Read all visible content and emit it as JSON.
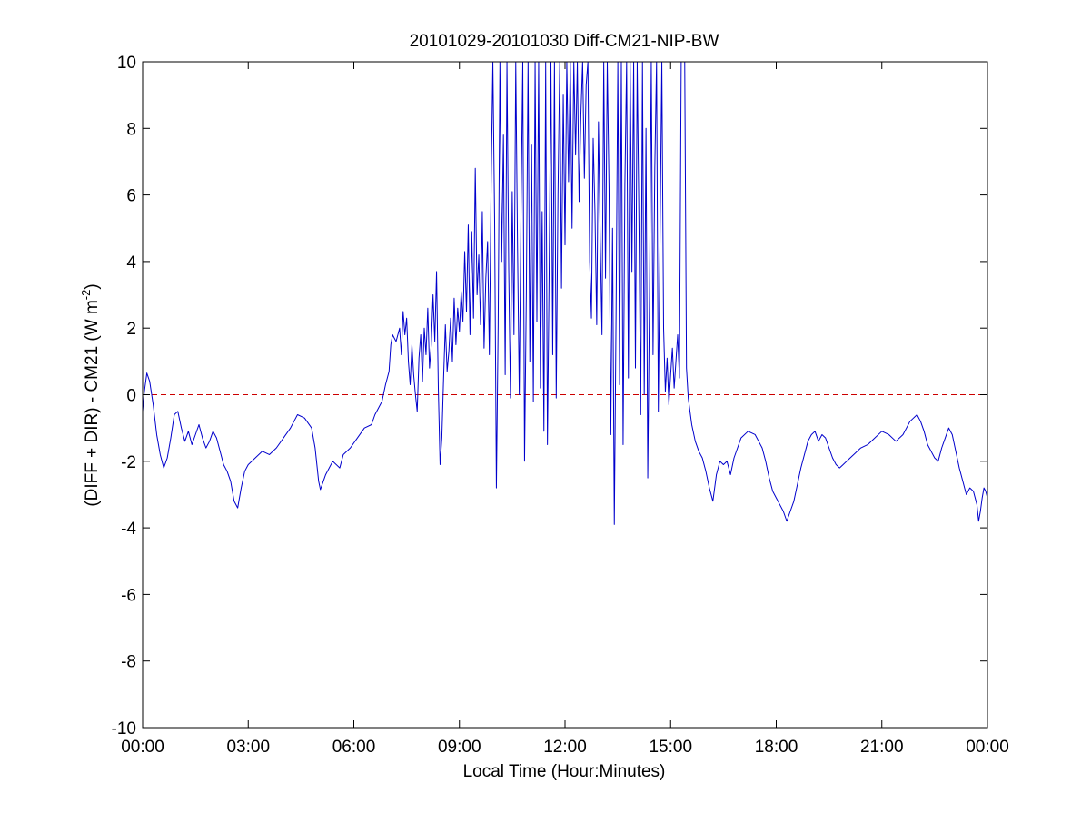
{
  "chart_data": {
    "type": "line",
    "title": "20101029-20101030 Diff-CM21-NIP-BW",
    "xlabel": "Local Time (Hour:Minutes)",
    "ylabel": {
      "main": "(DIFF + DIR) - CM21 (W m",
      "sup": "-2",
      "close": ")"
    },
    "x_unit": "hours",
    "xlim": [
      0,
      24
    ],
    "ylim": [
      -10,
      10
    ],
    "xticks": [
      {
        "value": 0,
        "label": "00:00"
      },
      {
        "value": 3,
        "label": "03:00"
      },
      {
        "value": 6,
        "label": "06:00"
      },
      {
        "value": 9,
        "label": "09:00"
      },
      {
        "value": 12,
        "label": "12:00"
      },
      {
        "value": 15,
        "label": "15:00"
      },
      {
        "value": 18,
        "label": "18:00"
      },
      {
        "value": 21,
        "label": "21:00"
      },
      {
        "value": 24,
        "label": "00:00"
      }
    ],
    "yticks": [
      {
        "value": 10,
        "label": "10"
      },
      {
        "value": 8,
        "label": "8"
      },
      {
        "value": 6,
        "label": "6"
      },
      {
        "value": 4,
        "label": "4"
      },
      {
        "value": 2,
        "label": "2"
      },
      {
        "value": 0,
        "label": "0"
      },
      {
        "value": -2,
        "label": "-2"
      },
      {
        "value": -4,
        "label": "-4"
      },
      {
        "value": -6,
        "label": "-6"
      },
      {
        "value": -8,
        "label": "-8"
      },
      {
        "value": -10,
        "label": "-10"
      }
    ],
    "grid": false,
    "reference_line": {
      "y": 0,
      "style": "dashed",
      "color": "#cc0000"
    },
    "series_color": "#0000cc",
    "series": [
      {
        "points": [
          [
            0.0,
            -0.5
          ],
          [
            0.05,
            0.1
          ],
          [
            0.12,
            0.65
          ],
          [
            0.2,
            0.4
          ],
          [
            0.3,
            -0.3
          ],
          [
            0.4,
            -1.2
          ],
          [
            0.5,
            -1.8
          ],
          [
            0.6,
            -2.2
          ],
          [
            0.7,
            -1.9
          ],
          [
            0.8,
            -1.3
          ],
          [
            0.9,
            -0.6
          ],
          [
            1.0,
            -0.5
          ],
          [
            1.1,
            -1.0
          ],
          [
            1.2,
            -1.4
          ],
          [
            1.3,
            -1.1
          ],
          [
            1.4,
            -1.5
          ],
          [
            1.5,
            -1.2
          ],
          [
            1.6,
            -0.9
          ],
          [
            1.7,
            -1.3
          ],
          [
            1.8,
            -1.6
          ],
          [
            1.9,
            -1.4
          ],
          [
            2.0,
            -1.1
          ],
          [
            2.1,
            -1.3
          ],
          [
            2.2,
            -1.7
          ],
          [
            2.3,
            -2.1
          ],
          [
            2.4,
            -2.3
          ],
          [
            2.5,
            -2.6
          ],
          [
            2.6,
            -3.2
          ],
          [
            2.7,
            -3.4
          ],
          [
            2.8,
            -2.8
          ],
          [
            2.9,
            -2.3
          ],
          [
            3.0,
            -2.1
          ],
          [
            3.2,
            -1.9
          ],
          [
            3.4,
            -1.7
          ],
          [
            3.6,
            -1.8
          ],
          [
            3.8,
            -1.6
          ],
          [
            4.0,
            -1.3
          ],
          [
            4.2,
            -1.0
          ],
          [
            4.3,
            -0.8
          ],
          [
            4.4,
            -0.6
          ],
          [
            4.6,
            -0.7
          ],
          [
            4.8,
            -1.0
          ],
          [
            4.9,
            -1.6
          ],
          [
            5.0,
            -2.6
          ],
          [
            5.05,
            -2.85
          ],
          [
            5.2,
            -2.4
          ],
          [
            5.4,
            -2.0
          ],
          [
            5.6,
            -2.2
          ],
          [
            5.7,
            -1.8
          ],
          [
            5.9,
            -1.6
          ],
          [
            6.1,
            -1.3
          ],
          [
            6.3,
            -1.0
          ],
          [
            6.5,
            -0.9
          ],
          [
            6.6,
            -0.6
          ],
          [
            6.8,
            -0.2
          ],
          [
            6.9,
            0.3
          ],
          [
            7.0,
            0.7
          ],
          [
            7.05,
            1.5
          ],
          [
            7.1,
            1.8
          ],
          [
            7.2,
            1.6
          ],
          [
            7.3,
            2.0
          ],
          [
            7.35,
            1.2
          ],
          [
            7.4,
            2.5
          ],
          [
            7.45,
            1.8
          ],
          [
            7.5,
            2.3
          ],
          [
            7.55,
            1.0
          ],
          [
            7.6,
            0.3
          ],
          [
            7.65,
            1.5
          ],
          [
            7.7,
            0.6
          ],
          [
            7.75,
            0.0
          ],
          [
            7.8,
            -0.5
          ],
          [
            7.85,
            1.1
          ],
          [
            7.9,
            1.8
          ],
          [
            7.95,
            0.4
          ],
          [
            8.0,
            2.0
          ],
          [
            8.05,
            1.2
          ],
          [
            8.1,
            2.6
          ],
          [
            8.15,
            0.8
          ],
          [
            8.2,
            1.5
          ],
          [
            8.25,
            3.0
          ],
          [
            8.3,
            1.6
          ],
          [
            8.35,
            3.7
          ],
          [
            8.4,
            0.2
          ],
          [
            8.45,
            -2.1
          ],
          [
            8.5,
            -1.3
          ],
          [
            8.55,
            0.5
          ],
          [
            8.6,
            2.1
          ],
          [
            8.65,
            0.7
          ],
          [
            8.7,
            1.3
          ],
          [
            8.75,
            2.3
          ],
          [
            8.8,
            1.0
          ],
          [
            8.85,
            2.9
          ],
          [
            8.9,
            1.5
          ],
          [
            8.95,
            2.6
          ],
          [
            9.0,
            1.9
          ],
          [
            9.05,
            3.1
          ],
          [
            9.1,
            2.2
          ],
          [
            9.15,
            4.3
          ],
          [
            9.2,
            2.5
          ],
          [
            9.25,
            5.1
          ],
          [
            9.3,
            1.8
          ],
          [
            9.35,
            4.9
          ],
          [
            9.4,
            2.3
          ],
          [
            9.45,
            6.8
          ],
          [
            9.5,
            3.0
          ],
          [
            9.55,
            4.2
          ],
          [
            9.6,
            2.1
          ],
          [
            9.65,
            5.5
          ],
          [
            9.7,
            1.4
          ],
          [
            9.75,
            3.5
          ],
          [
            9.8,
            4.6
          ],
          [
            9.85,
            1.2
          ],
          [
            9.9,
            6.3
          ],
          [
            9.95,
            10.0
          ],
          [
            10.0,
            5.2
          ],
          [
            10.05,
            -2.8
          ],
          [
            10.1,
            2.1
          ],
          [
            10.15,
            10.0
          ],
          [
            10.2,
            4.0
          ],
          [
            10.25,
            7.8
          ],
          [
            10.3,
            0.6
          ],
          [
            10.35,
            10.0
          ],
          [
            10.4,
            3.8
          ],
          [
            10.45,
            -0.1
          ],
          [
            10.5,
            6.1
          ],
          [
            10.55,
            1.8
          ],
          [
            10.6,
            10.0
          ],
          [
            10.65,
            4.5
          ],
          [
            10.7,
            0.0
          ],
          [
            10.75,
            5.5
          ],
          [
            10.8,
            10.0
          ],
          [
            10.85,
            -2.0
          ],
          [
            10.9,
            3.0
          ],
          [
            10.95,
            10.0
          ],
          [
            11.0,
            1.0
          ],
          [
            11.05,
            7.5
          ],
          [
            11.1,
            -0.2
          ],
          [
            11.15,
            10.0
          ],
          [
            11.2,
            2.2
          ],
          [
            11.25,
            10.0
          ],
          [
            11.3,
            0.2
          ],
          [
            11.35,
            5.5
          ],
          [
            11.4,
            -1.1
          ],
          [
            11.45,
            10.0
          ],
          [
            11.5,
            -1.5
          ],
          [
            11.55,
            3.8
          ],
          [
            11.6,
            10.0
          ],
          [
            11.65,
            1.2
          ],
          [
            11.7,
            10.0
          ],
          [
            11.75,
            -0.1
          ],
          [
            11.8,
            6.0
          ],
          [
            11.85,
            10.0
          ],
          [
            11.9,
            3.2
          ],
          [
            11.95,
            9.0
          ],
          [
            12.0,
            4.5
          ],
          [
            12.05,
            10.0
          ],
          [
            12.1,
            6.4
          ],
          [
            12.15,
            10.0
          ],
          [
            12.2,
            5.0
          ],
          [
            12.25,
            10.0
          ],
          [
            12.3,
            7.2
          ],
          [
            12.35,
            10.0
          ],
          [
            12.4,
            5.8
          ],
          [
            12.45,
            8.4
          ],
          [
            12.5,
            10.0
          ],
          [
            12.55,
            6.5
          ],
          [
            12.6,
            9.3
          ],
          [
            12.65,
            10.0
          ],
          [
            12.7,
            4.0
          ],
          [
            12.75,
            2.3
          ],
          [
            12.8,
            7.7
          ],
          [
            12.85,
            5.5
          ],
          [
            12.9,
            2.1
          ],
          [
            12.95,
            8.2
          ],
          [
            13.0,
            4.7
          ],
          [
            13.05,
            1.8
          ],
          [
            13.1,
            10.0
          ],
          [
            13.15,
            3.5
          ],
          [
            13.2,
            10.0
          ],
          [
            13.25,
            6.2
          ],
          [
            13.3,
            -1.2
          ],
          [
            13.35,
            5.0
          ],
          [
            13.4,
            -3.9
          ],
          [
            13.45,
            2.5
          ],
          [
            13.5,
            10.0
          ],
          [
            13.55,
            0.3
          ],
          [
            13.6,
            10.0
          ],
          [
            13.65,
            -1.5
          ],
          [
            13.7,
            6.3
          ],
          [
            13.75,
            10.0
          ],
          [
            13.8,
            0.5
          ],
          [
            13.85,
            10.0
          ],
          [
            13.9,
            3.7
          ],
          [
            13.95,
            10.0
          ],
          [
            14.0,
            0.8
          ],
          [
            14.05,
            10.0
          ],
          [
            14.1,
            5.2
          ],
          [
            14.15,
            -0.6
          ],
          [
            14.2,
            10.0
          ],
          [
            14.25,
            0.0
          ],
          [
            14.3,
            8.0
          ],
          [
            14.35,
            -2.5
          ],
          [
            14.4,
            3.0
          ],
          [
            14.45,
            10.0
          ],
          [
            14.5,
            1.2
          ],
          [
            14.55,
            6.8
          ],
          [
            14.6,
            10.0
          ],
          [
            14.65,
            -0.5
          ],
          [
            14.7,
            4.8
          ],
          [
            14.75,
            10.0
          ],
          [
            14.8,
            2.0
          ],
          [
            14.85,
            0.1
          ],
          [
            14.9,
            1.1
          ],
          [
            14.95,
            -0.3
          ],
          [
            15.0,
            0.6
          ],
          [
            15.05,
            1.4
          ],
          [
            15.1,
            0.2
          ],
          [
            15.15,
            1.0
          ],
          [
            15.2,
            1.8
          ],
          [
            15.25,
            0.5
          ],
          [
            15.3,
            10.0
          ],
          [
            15.35,
            10.0
          ],
          [
            15.4,
            10.0
          ],
          [
            15.45,
            0.8
          ],
          [
            15.5,
            -0.1
          ],
          [
            15.55,
            -0.5
          ],
          [
            15.6,
            -0.9
          ],
          [
            15.7,
            -1.4
          ],
          [
            15.8,
            -1.7
          ],
          [
            15.9,
            -1.9
          ],
          [
            16.0,
            -2.3
          ],
          [
            16.1,
            -2.8
          ],
          [
            16.2,
            -3.2
          ],
          [
            16.3,
            -2.4
          ],
          [
            16.4,
            -2.0
          ],
          [
            16.5,
            -2.1
          ],
          [
            16.6,
            -2.0
          ],
          [
            16.7,
            -2.4
          ],
          [
            16.8,
            -1.9
          ],
          [
            16.9,
            -1.6
          ],
          [
            17.0,
            -1.3
          ],
          [
            17.2,
            -1.1
          ],
          [
            17.4,
            -1.2
          ],
          [
            17.5,
            -1.4
          ],
          [
            17.6,
            -1.6
          ],
          [
            17.7,
            -2.0
          ],
          [
            17.8,
            -2.5
          ],
          [
            17.9,
            -2.9
          ],
          [
            18.0,
            -3.1
          ],
          [
            18.1,
            -3.3
          ],
          [
            18.2,
            -3.5
          ],
          [
            18.3,
            -3.8
          ],
          [
            18.4,
            -3.5
          ],
          [
            18.5,
            -3.2
          ],
          [
            18.6,
            -2.7
          ],
          [
            18.7,
            -2.2
          ],
          [
            18.8,
            -1.8
          ],
          [
            18.9,
            -1.4
          ],
          [
            19.0,
            -1.2
          ],
          [
            19.1,
            -1.1
          ],
          [
            19.2,
            -1.4
          ],
          [
            19.3,
            -1.2
          ],
          [
            19.4,
            -1.3
          ],
          [
            19.5,
            -1.6
          ],
          [
            19.6,
            -1.9
          ],
          [
            19.7,
            -2.1
          ],
          [
            19.8,
            -2.2
          ],
          [
            19.9,
            -2.1
          ],
          [
            20.0,
            -2.0
          ],
          [
            20.2,
            -1.8
          ],
          [
            20.4,
            -1.6
          ],
          [
            20.6,
            -1.5
          ],
          [
            20.8,
            -1.3
          ],
          [
            21.0,
            -1.1
          ],
          [
            21.2,
            -1.2
          ],
          [
            21.4,
            -1.4
          ],
          [
            21.6,
            -1.2
          ],
          [
            21.8,
            -0.8
          ],
          [
            22.0,
            -0.6
          ],
          [
            22.1,
            -0.8
          ],
          [
            22.2,
            -1.1
          ],
          [
            22.3,
            -1.5
          ],
          [
            22.4,
            -1.7
          ],
          [
            22.5,
            -1.9
          ],
          [
            22.6,
            -2.0
          ],
          [
            22.7,
            -1.6
          ],
          [
            22.8,
            -1.3
          ],
          [
            22.9,
            -1.0
          ],
          [
            23.0,
            -1.2
          ],
          [
            23.1,
            -1.7
          ],
          [
            23.2,
            -2.2
          ],
          [
            23.3,
            -2.6
          ],
          [
            23.4,
            -3.0
          ],
          [
            23.5,
            -2.8
          ],
          [
            23.6,
            -2.9
          ],
          [
            23.7,
            -3.3
          ],
          [
            23.75,
            -3.8
          ],
          [
            23.8,
            -3.5
          ],
          [
            23.85,
            -3.1
          ],
          [
            23.9,
            -2.8
          ],
          [
            23.95,
            -2.9
          ],
          [
            24.0,
            -3.1
          ]
        ]
      }
    ]
  }
}
